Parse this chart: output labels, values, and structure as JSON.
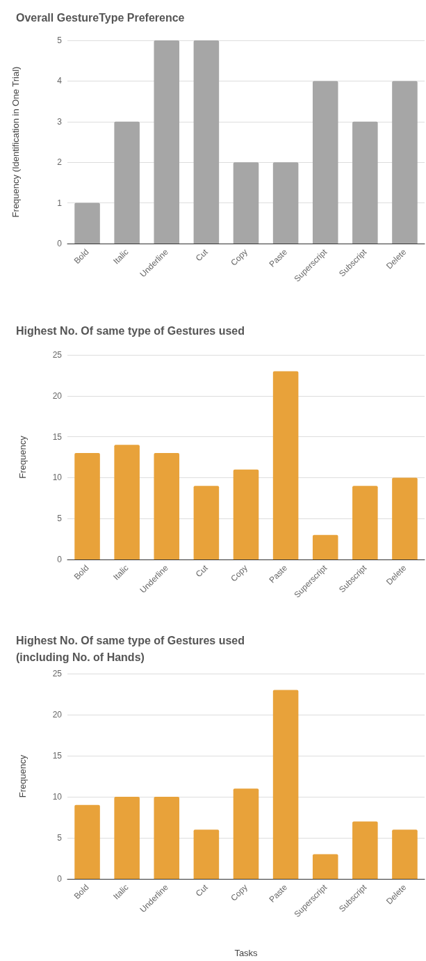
{
  "chart_data": [
    {
      "type": "bar",
      "title": "Overall GestureType Preference",
      "ylabel": "Frequency (Identification in One Trial)",
      "categories": [
        "Bold",
        "Italic",
        "Underline",
        "Cut",
        "Copy",
        "Paste",
        "Superscript",
        "Subscript",
        "Delete"
      ],
      "values": [
        1,
        3,
        5,
        5,
        2,
        2,
        4,
        3,
        4
      ],
      "color": "#a6a6a6",
      "ylim": [
        0,
        5
      ],
      "yticks": [
        0,
        1,
        2,
        3,
        4,
        5
      ],
      "grid": "y"
    },
    {
      "type": "bar",
      "title": "Highest No. Of same type of Gestures used",
      "ylabel": "Frequency",
      "categories": [
        "Bold",
        "Italic",
        "Underline",
        "Cut",
        "Copy",
        "Paste",
        "Superscript",
        "Subscript",
        "Delete"
      ],
      "values": [
        13,
        14,
        13,
        9,
        11,
        23,
        3,
        9,
        10
      ],
      "color": "#e8a23a",
      "ylim": [
        0,
        25
      ],
      "yticks": [
        0,
        5,
        10,
        15,
        20,
        25
      ],
      "grid": "y"
    },
    {
      "type": "bar",
      "title": "Highest No. Of same type of Gestures used\n(including No. of Hands)",
      "ylabel": "Frequency",
      "xlabel": "Tasks",
      "categories": [
        "Bold",
        "Italic",
        "Underline",
        "Cut",
        "Copy",
        "Paste",
        "Superscript",
        "Subscript",
        "Delete"
      ],
      "values": [
        9,
        10,
        10,
        6,
        11,
        23,
        3,
        7,
        6
      ],
      "color": "#e8a23a",
      "ylim": [
        0,
        25
      ],
      "yticks": [
        0,
        5,
        10,
        15,
        20,
        25
      ],
      "grid": "y"
    }
  ]
}
